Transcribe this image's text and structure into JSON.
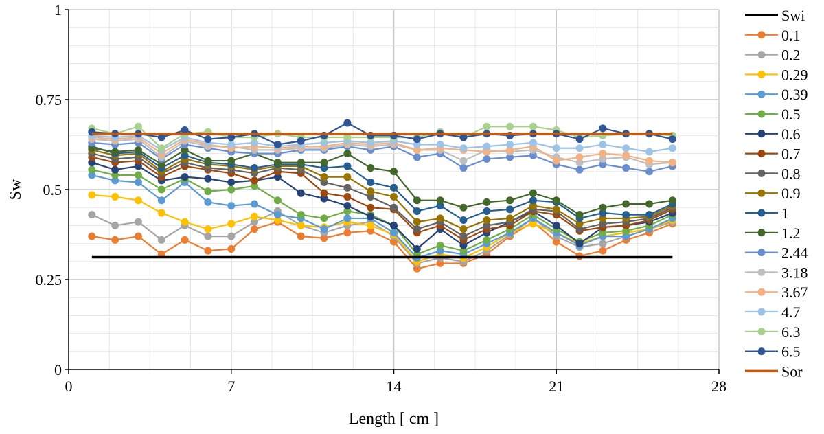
{
  "chart_data": {
    "type": "line",
    "title": "",
    "xlabel": "Length [ cm ]",
    "ylabel": "Sw",
    "xlim": [
      0,
      28
    ],
    "ylim": [
      0,
      1
    ],
    "xticks": [
      0,
      7,
      14,
      21,
      28
    ],
    "xtick_labels": [
      "0",
      "7",
      "14",
      "21",
      "28"
    ],
    "yticks": [
      0,
      0.25,
      0.5,
      0.75,
      1
    ],
    "ytick_labels": [
      "0",
      "0.25",
      "0.5",
      "0.75",
      "1"
    ],
    "grid": true,
    "legend_position": "right",
    "x": [
      1,
      2,
      3,
      4,
      5,
      6,
      7,
      8,
      9,
      10,
      11,
      12,
      13,
      14,
      15,
      16,
      17,
      18,
      19,
      20,
      21,
      22,
      23,
      24,
      25,
      26
    ],
    "series": [
      {
        "name": "Swi",
        "kind": "line",
        "color": "#000000",
        "x": [
          1,
          26
        ],
        "values": [
          0.312,
          0.312
        ]
      },
      {
        "name": "0.1",
        "kind": "markers",
        "color": "#ED7D31",
        "values": [
          0.37,
          0.36,
          0.37,
          0.32,
          0.36,
          0.33,
          0.335,
          0.39,
          0.41,
          0.37,
          0.365,
          0.38,
          0.385,
          0.355,
          0.28,
          0.295,
          0.295,
          0.32,
          0.37,
          0.41,
          0.355,
          0.315,
          0.33,
          0.36,
          0.38,
          0.405
        ]
      },
      {
        "name": "0.2",
        "kind": "markers",
        "color": "#A5A5A5",
        "values": [
          0.43,
          0.4,
          0.41,
          0.36,
          0.4,
          0.37,
          0.37,
          0.41,
          0.44,
          0.4,
          0.38,
          0.4,
          0.41,
          0.37,
          0.295,
          0.31,
          0.3,
          0.33,
          0.375,
          0.42,
          0.37,
          0.34,
          0.35,
          0.37,
          0.39,
          0.41
        ]
      },
      {
        "name": "0.29",
        "kind": "markers",
        "color": "#FFC000",
        "values": [
          0.485,
          0.48,
          0.47,
          0.435,
          0.41,
          0.39,
          0.405,
          0.425,
          0.415,
          0.4,
          0.395,
          0.41,
          0.4,
          0.375,
          0.3,
          0.32,
          0.31,
          0.34,
          0.38,
          0.405,
          0.38,
          0.35,
          0.37,
          0.38,
          0.39,
          0.415
        ]
      },
      {
        "name": "0.39",
        "kind": "markers",
        "color": "#5B9BD5",
        "values": [
          0.54,
          0.525,
          0.52,
          0.47,
          0.52,
          0.465,
          0.455,
          0.46,
          0.43,
          0.42,
          0.39,
          0.42,
          0.42,
          0.38,
          0.31,
          0.33,
          0.32,
          0.35,
          0.38,
          0.42,
          0.38,
          0.345,
          0.37,
          0.37,
          0.39,
          0.42
        ]
      },
      {
        "name": "0.5",
        "kind": "markers",
        "color": "#70AD47",
        "values": [
          0.555,
          0.54,
          0.54,
          0.5,
          0.53,
          0.495,
          0.5,
          0.51,
          0.47,
          0.43,
          0.42,
          0.44,
          0.43,
          0.4,
          0.32,
          0.345,
          0.33,
          0.36,
          0.39,
          0.43,
          0.39,
          0.355,
          0.38,
          0.385,
          0.4,
          0.43
        ]
      },
      {
        "name": "0.6",
        "kind": "markers",
        "color": "#264478",
        "values": [
          0.575,
          0.555,
          0.565,
          0.525,
          0.535,
          0.53,
          0.52,
          0.525,
          0.535,
          0.49,
          0.475,
          0.455,
          0.425,
          0.4,
          0.335,
          0.39,
          0.345,
          0.38,
          0.41,
          0.44,
          0.4,
          0.35,
          0.395,
          0.4,
          0.41,
          0.435
        ]
      },
      {
        "name": "0.7",
        "kind": "markers",
        "color": "#9E480E",
        "values": [
          0.59,
          0.575,
          0.58,
          0.535,
          0.565,
          0.555,
          0.545,
          0.525,
          0.55,
          0.545,
          0.49,
          0.48,
          0.45,
          0.445,
          0.38,
          0.4,
          0.36,
          0.39,
          0.4,
          0.44,
          0.43,
          0.385,
          0.395,
          0.4,
          0.415,
          0.445
        ]
      },
      {
        "name": "0.8",
        "kind": "markers",
        "color": "#636363",
        "values": [
          0.6,
          0.585,
          0.59,
          0.545,
          0.575,
          0.56,
          0.555,
          0.545,
          0.56,
          0.555,
          0.52,
          0.505,
          0.48,
          0.45,
          0.39,
          0.41,
          0.37,
          0.4,
          0.41,
          0.445,
          0.44,
          0.39,
          0.405,
          0.41,
          0.42,
          0.45
        ]
      },
      {
        "name": "0.9",
        "kind": "markers",
        "color": "#997300",
        "values": [
          0.61,
          0.595,
          0.6,
          0.55,
          0.585,
          0.57,
          0.565,
          0.555,
          0.565,
          0.565,
          0.535,
          0.535,
          0.495,
          0.48,
          0.41,
          0.42,
          0.39,
          0.415,
          0.42,
          0.455,
          0.445,
          0.405,
          0.42,
          0.42,
          0.425,
          0.455
        ]
      },
      {
        "name": "1",
        "kind": "markers",
        "color": "#255E91",
        "values": [
          0.62,
          0.6,
          0.605,
          0.56,
          0.595,
          0.575,
          0.57,
          0.56,
          0.57,
          0.57,
          0.56,
          0.565,
          0.52,
          0.505,
          0.44,
          0.455,
          0.415,
          0.44,
          0.445,
          0.47,
          0.465,
          0.42,
          0.435,
          0.43,
          0.43,
          0.46
        ]
      },
      {
        "name": "1.2",
        "kind": "markers",
        "color": "#43682B",
        "values": [
          0.615,
          0.605,
          0.61,
          0.57,
          0.61,
          0.58,
          0.58,
          0.6,
          0.575,
          0.575,
          0.575,
          0.6,
          0.56,
          0.55,
          0.47,
          0.47,
          0.45,
          0.465,
          0.47,
          0.49,
          0.47,
          0.43,
          0.45,
          0.46,
          0.46,
          0.47
        ]
      },
      {
        "name": "2.44",
        "kind": "markers",
        "color": "#698ED0",
        "values": [
          0.63,
          0.625,
          0.63,
          0.585,
          0.625,
          0.615,
          0.605,
          0.6,
          0.6,
          0.61,
          0.61,
          0.62,
          0.61,
          0.62,
          0.59,
          0.6,
          0.56,
          0.585,
          0.59,
          0.595,
          0.57,
          0.555,
          0.57,
          0.56,
          0.55,
          0.565
        ]
      },
      {
        "name": "3.18",
        "kind": "markers",
        "color": "#BFBFBF",
        "values": [
          0.64,
          0.635,
          0.64,
          0.59,
          0.635,
          0.62,
          0.62,
          0.61,
          0.61,
          0.615,
          0.615,
          0.625,
          0.62,
          0.625,
          0.61,
          0.61,
          0.58,
          0.61,
          0.605,
          0.61,
          0.59,
          0.575,
          0.585,
          0.59,
          0.57,
          0.575
        ]
      },
      {
        "name": "3.67",
        "kind": "markers",
        "color": "#F4B183",
        "values": [
          0.645,
          0.64,
          0.645,
          0.6,
          0.64,
          0.625,
          0.615,
          0.62,
          0.615,
          0.62,
          0.62,
          0.63,
          0.625,
          0.63,
          0.61,
          0.615,
          0.61,
          0.605,
          0.61,
          0.62,
          0.58,
          0.59,
          0.6,
          0.595,
          0.58,
          0.575
        ]
      },
      {
        "name": "4.7",
        "kind": "markers",
        "color": "#9DC3E6",
        "values": [
          0.65,
          0.645,
          0.65,
          0.61,
          0.645,
          0.63,
          0.625,
          0.63,
          0.62,
          0.625,
          0.63,
          0.635,
          0.63,
          0.635,
          0.625,
          0.625,
          0.615,
          0.62,
          0.625,
          0.63,
          0.615,
          0.615,
          0.625,
          0.615,
          0.605,
          0.615
        ]
      },
      {
        "name": "6.3",
        "kind": "markers",
        "color": "#A9D18E",
        "values": [
          0.67,
          0.655,
          0.675,
          0.615,
          0.655,
          0.66,
          0.645,
          0.645,
          0.655,
          0.645,
          0.645,
          0.645,
          0.645,
          0.645,
          0.645,
          0.66,
          0.645,
          0.675,
          0.675,
          0.675,
          0.665,
          0.645,
          0.65,
          0.655,
          0.655,
          0.65
        ]
      },
      {
        "name": "6.5",
        "kind": "markers",
        "color": "#2F5597",
        "values": [
          0.66,
          0.655,
          0.655,
          0.645,
          0.665,
          0.64,
          0.645,
          0.655,
          0.625,
          0.635,
          0.65,
          0.685,
          0.65,
          0.65,
          0.64,
          0.655,
          0.645,
          0.655,
          0.65,
          0.655,
          0.655,
          0.64,
          0.67,
          0.655,
          0.655,
          0.64
        ]
      },
      {
        "name": "Sor",
        "kind": "line",
        "color": "#C55A11",
        "x": [
          1,
          26
        ],
        "values": [
          0.655,
          0.655
        ]
      }
    ]
  }
}
